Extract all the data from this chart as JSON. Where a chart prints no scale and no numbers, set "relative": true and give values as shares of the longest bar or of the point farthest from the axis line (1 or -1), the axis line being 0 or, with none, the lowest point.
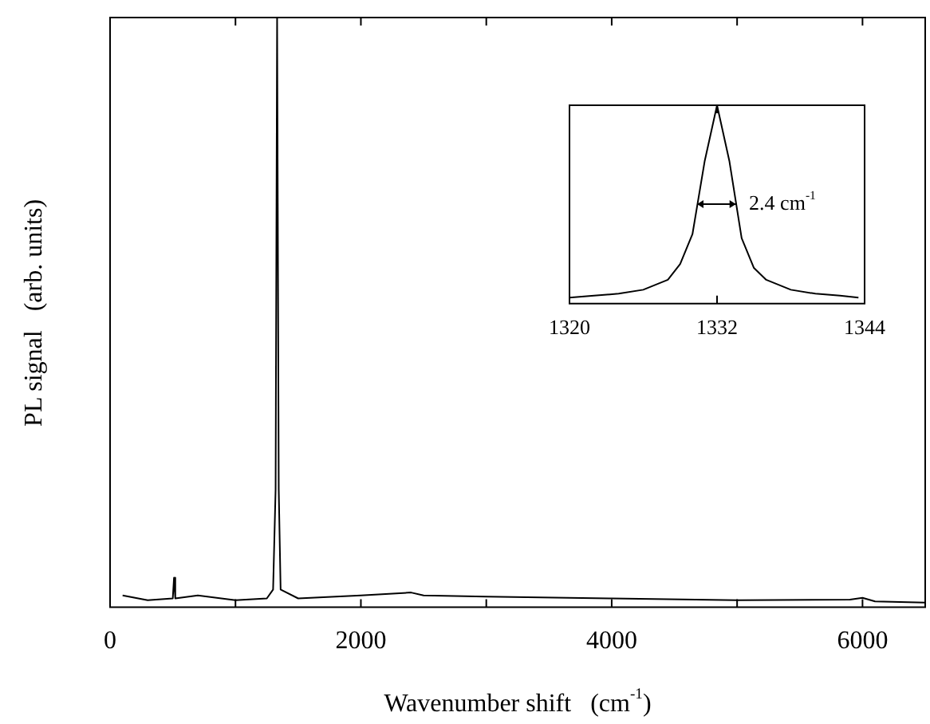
{
  "chart_data": [
    {
      "type": "line",
      "relative": true,
      "xlabel": "Wavenumber shift   (cm$^{-1}$)",
      "ylabel": "PL signal   (arb. units)",
      "xlim": [
        0,
        6500
      ],
      "xticks": [
        0,
        {
          "value": 1000,
          "label": null
        },
        2000,
        {
          "value": 3000,
          "label": null
        },
        4000,
        {
          "value": 5000,
          "label": null
        },
        6000
      ],
      "tick_labels": "x",
      "grid": false,
      "legend": false,
      "marker": "none",
      "series": [
        {
          "color": "#000000",
          "x": [
            100,
            300,
            500,
            510,
            520,
            700,
            1000,
            1250,
            1300,
            1320,
            1332,
            1345,
            1360,
            1500,
            2000,
            2400,
            2500,
            3000,
            4000,
            5000,
            5900,
            6000,
            6100,
            6500
          ],
          "values": [
            0.02,
            0.012,
            0.015,
            0.05,
            0.015,
            0.02,
            0.012,
            0.015,
            0.03,
            0.2,
            1,
            0.2,
            0.03,
            0.015,
            0.02,
            0.025,
            0.02,
            0.018,
            0.015,
            0.012,
            0.013,
            0.016,
            0.01,
            0.008
          ]
        }
      ]
    },
    {
      "type": "line",
      "relative": true,
      "xlim": [
        1320,
        1344
      ],
      "xticks": [
        1320,
        1332,
        1344
      ],
      "tick_labels": "x",
      "grid": false,
      "legend": false,
      "marker": "none",
      "annotations": [
        "2.4 cm$^{-1}$"
      ],
      "series": [
        {
          "color": "#000000",
          "x": [
            1320,
            1322,
            1324,
            1326,
            1328,
            1329,
            1330,
            1331,
            1332,
            1333,
            1334,
            1335,
            1336,
            1338,
            1340,
            1342,
            1343.5
          ],
          "values": [
            0.03,
            0.04,
            0.05,
            0.07,
            0.12,
            0.2,
            0.35,
            0.72,
            1,
            0.72,
            0.33,
            0.18,
            0.12,
            0.07,
            0.05,
            0.04,
            0.03
          ]
        }
      ]
    }
  ]
}
